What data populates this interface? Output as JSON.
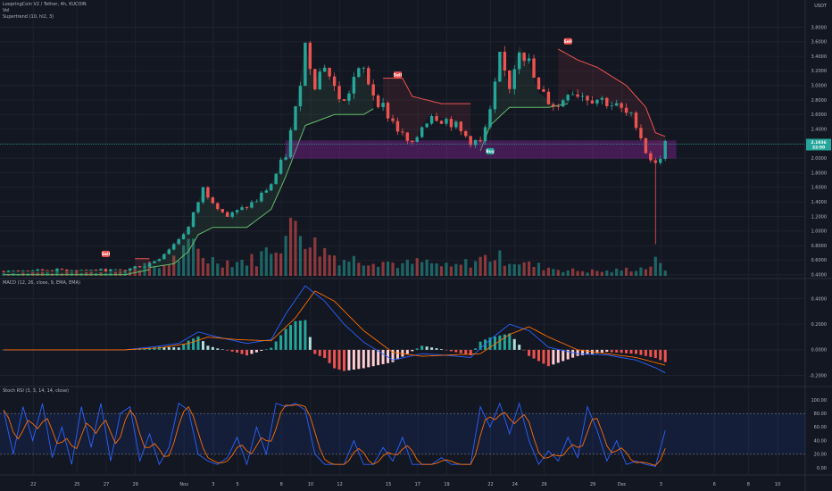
{
  "header": {
    "title": "LoopringCoin V2 / Tether, 4h, KUCOIN",
    "volume_label": "Vol",
    "supertrend_label": "Supertrend (10, hl2, 3)",
    "macd_label": "MACD (12, 26, close, 9, EMA, EMA)",
    "stoch_label": "Stoch RSI (3, 3, 14, 14, close)",
    "currency": "USDT"
  },
  "colors": {
    "background": "#131722",
    "up": "#26a69a",
    "down": "#ef5350",
    "supertrend_up": "#66bb6a",
    "supertrend_down": "#ef5350",
    "zone": "#9c27b0",
    "macd": "#2962ff",
    "signal": "#ff6d00",
    "stoch_k": "#2962ff",
    "stoch_d": "#ff6d00",
    "stoch_band": "#2962ff",
    "price_tag": "#26a69a"
  },
  "price_tag": {
    "price": "2.1936",
    "countdown": "32:50"
  },
  "chart_data": [
    {
      "type": "candlestick",
      "name": "price",
      "y_ticks": [
        "3.8000",
        "3.6000",
        "3.4000",
        "3.2000",
        "3.0000",
        "2.8000",
        "2.6000",
        "2.4000",
        "2.2000",
        "2.0000",
        "1.8000",
        "1.6000",
        "1.4000",
        "1.2000",
        "1.0000",
        "0.8000",
        "0.6000",
        "0.4000"
      ],
      "ylim": [
        0.36,
        4.1
      ],
      "x_ticks": [
        "22",
        "25",
        "27",
        "29",
        "Nov",
        "3",
        "5",
        "8",
        "10",
        "12",
        "15",
        "17",
        "19",
        "22",
        "24",
        "26",
        "29",
        "Dec",
        "3",
        "6",
        "8",
        "10",
        "13"
      ],
      "zone": [
        2.0,
        2.24
      ],
      "signals": [
        {
          "label": "Sell",
          "value": 0.68
        },
        {
          "label": "Sell",
          "value": 3.14
        },
        {
          "label": "Buy",
          "value": 2.09
        },
        {
          "label": "Sell",
          "value": 3.6
        }
      ],
      "keypoints": [
        {
          "t": 0,
          "v": 0.45
        },
        {
          "t": 12,
          "v": 0.47
        },
        {
          "t": 25,
          "v": 0.46
        },
        {
          "t": 27,
          "v": 0.51
        },
        {
          "t": 29,
          "v": 0.52
        },
        {
          "t": 32,
          "v": 0.63
        },
        {
          "t": 35,
          "v": 0.82
        },
        {
          "t": 38,
          "v": 1.05
        },
        {
          "t": 41,
          "v": 1.58
        },
        {
          "t": 44,
          "v": 1.35
        },
        {
          "t": 46,
          "v": 1.2
        },
        {
          "t": 49,
          "v": 1.3
        },
        {
          "t": 52,
          "v": 1.42
        },
        {
          "t": 55,
          "v": 1.65
        },
        {
          "t": 58,
          "v": 2.05
        },
        {
          "t": 60,
          "v": 2.65
        },
        {
          "t": 62,
          "v": 3.55
        },
        {
          "t": 64,
          "v": 3.05
        },
        {
          "t": 66,
          "v": 3.3
        },
        {
          "t": 68,
          "v": 2.95
        },
        {
          "t": 70,
          "v": 2.75
        },
        {
          "t": 72,
          "v": 3.1
        },
        {
          "t": 74,
          "v": 3.2
        },
        {
          "t": 76,
          "v": 2.9
        },
        {
          "t": 78,
          "v": 2.7
        },
        {
          "t": 80,
          "v": 2.5
        },
        {
          "t": 82,
          "v": 2.3
        },
        {
          "t": 84,
          "v": 2.15
        },
        {
          "t": 86,
          "v": 2.45
        },
        {
          "t": 88,
          "v": 2.62
        },
        {
          "t": 90,
          "v": 2.55
        },
        {
          "t": 92,
          "v": 2.5
        },
        {
          "t": 94,
          "v": 2.35
        },
        {
          "t": 96,
          "v": 2.25
        },
        {
          "t": 98,
          "v": 2.2
        },
        {
          "t": 100,
          "v": 2.6
        },
        {
          "t": 102,
          "v": 3.35
        },
        {
          "t": 104,
          "v": 3.0
        },
        {
          "t": 106,
          "v": 3.55
        },
        {
          "t": 108,
          "v": 3.3
        },
        {
          "t": 110,
          "v": 2.9
        },
        {
          "t": 112,
          "v": 2.8
        },
        {
          "t": 114,
          "v": 2.7
        },
        {
          "t": 116,
          "v": 2.95
        },
        {
          "t": 118,
          "v": 2.9
        },
        {
          "t": 120,
          "v": 2.85
        },
        {
          "t": 122,
          "v": 2.82
        },
        {
          "t": 124,
          "v": 2.78
        },
        {
          "t": 126,
          "v": 2.7
        },
        {
          "t": 128,
          "v": 2.6
        },
        {
          "t": 130,
          "v": 2.5
        },
        {
          "t": 132,
          "v": 2.1
        },
        {
          "t": 134,
          "v": 1.9
        },
        {
          "t": 136,
          "v": 2.19
        }
      ],
      "supertrend_segments": [
        {
          "dir": "up",
          "pts": [
            [
              0,
              0.4
            ],
            [
              25,
              0.4
            ],
            [
              30,
              0.47
            ]
          ]
        },
        {
          "dir": "down",
          "pts": [
            [
              27,
              0.62
            ],
            [
              30,
              0.62
            ]
          ]
        },
        {
          "dir": "up",
          "pts": [
            [
              30,
              0.5
            ],
            [
              35,
              0.55
            ],
            [
              38,
              0.72
            ],
            [
              40,
              0.95
            ],
            [
              43,
              1.05
            ],
            [
              50,
              1.05
            ],
            [
              55,
              1.3
            ],
            [
              58,
              1.75
            ],
            [
              62,
              2.45
            ],
            [
              68,
              2.6
            ],
            [
              74,
              2.6
            ],
            [
              76,
              2.68
            ]
          ]
        },
        {
          "dir": "down",
          "pts": [
            [
              78,
              3.1
            ],
            [
              82,
              3.1
            ],
            [
              84,
              2.85
            ],
            [
              90,
              2.75
            ],
            [
              96,
              2.75
            ]
          ]
        },
        {
          "dir": "up",
          "pts": [
            [
              98,
              2.1
            ],
            [
              100,
              2.45
            ],
            [
              104,
              2.7
            ],
            [
              112,
              2.7
            ],
            [
              116,
              2.75
            ]
          ]
        },
        {
          "dir": "down",
          "pts": [
            [
              114,
              3.5
            ],
            [
              118,
              3.35
            ],
            [
              122,
              3.25
            ],
            [
              128,
              3.0
            ],
            [
              132,
              2.7
            ],
            [
              134,
              2.35
            ],
            [
              136,
              2.3
            ]
          ]
        }
      ]
    },
    {
      "type": "bar",
      "name": "volume",
      "keypoints": [
        {
          "t": 0,
          "v": 0.05
        },
        {
          "t": 25,
          "v": 0.08
        },
        {
          "t": 29,
          "v": 0.2
        },
        {
          "t": 32,
          "v": 0.15
        },
        {
          "t": 36,
          "v": 0.35
        },
        {
          "t": 39,
          "v": 0.55
        },
        {
          "t": 42,
          "v": 0.3
        },
        {
          "t": 47,
          "v": 0.25
        },
        {
          "t": 52,
          "v": 0.3
        },
        {
          "t": 56,
          "v": 0.6
        },
        {
          "t": 58,
          "v": 0.7
        },
        {
          "t": 60,
          "v": 1.0
        },
        {
          "t": 62,
          "v": 0.8
        },
        {
          "t": 64,
          "v": 0.55
        },
        {
          "t": 66,
          "v": 0.45
        },
        {
          "t": 70,
          "v": 0.3
        },
        {
          "t": 76,
          "v": 0.3
        },
        {
          "t": 82,
          "v": 0.2
        },
        {
          "t": 86,
          "v": 0.25
        },
        {
          "t": 92,
          "v": 0.15
        },
        {
          "t": 100,
          "v": 0.35
        },
        {
          "t": 104,
          "v": 0.3
        },
        {
          "t": 108,
          "v": 0.2
        },
        {
          "t": 116,
          "v": 0.1
        },
        {
          "t": 124,
          "v": 0.08
        },
        {
          "t": 132,
          "v": 0.15
        },
        {
          "t": 134,
          "v": 0.25
        },
        {
          "t": 136,
          "v": 0.12
        }
      ]
    },
    {
      "type": "line",
      "name": "macd",
      "y_ticks": [
        "0.4000",
        "0.2000",
        "0.0000",
        "-0.2000"
      ],
      "ylim": [
        -0.28,
        0.55
      ],
      "series": [
        {
          "name": "MACD",
          "keypoints": [
            {
              "t": 0,
              "v": 0
            },
            {
              "t": 25,
              "v": 0.0
            },
            {
              "t": 30,
              "v": 0.02
            },
            {
              "t": 36,
              "v": 0.05
            },
            {
              "t": 40,
              "v": 0.14
            },
            {
              "t": 44,
              "v": 0.1
            },
            {
              "t": 50,
              "v": 0.05
            },
            {
              "t": 55,
              "v": 0.08
            },
            {
              "t": 58,
              "v": 0.28
            },
            {
              "t": 62,
              "v": 0.5
            },
            {
              "t": 66,
              "v": 0.38
            },
            {
              "t": 70,
              "v": 0.2
            },
            {
              "t": 74,
              "v": 0.06
            },
            {
              "t": 80,
              "v": -0.08
            },
            {
              "t": 86,
              "v": -0.03
            },
            {
              "t": 90,
              "v": -0.04
            },
            {
              "t": 96,
              "v": -0.06
            },
            {
              "t": 100,
              "v": 0.08
            },
            {
              "t": 104,
              "v": 0.2
            },
            {
              "t": 108,
              "v": 0.15
            },
            {
              "t": 112,
              "v": 0.02
            },
            {
              "t": 118,
              "v": -0.03
            },
            {
              "t": 124,
              "v": -0.04
            },
            {
              "t": 130,
              "v": -0.08
            },
            {
              "t": 134,
              "v": -0.14
            },
            {
              "t": 136,
              "v": -0.18
            }
          ]
        },
        {
          "name": "Signal",
          "keypoints": [
            {
              "t": 0,
              "v": 0
            },
            {
              "t": 25,
              "v": 0.0
            },
            {
              "t": 32,
              "v": 0.015
            },
            {
              "t": 38,
              "v": 0.05
            },
            {
              "t": 42,
              "v": 0.1
            },
            {
              "t": 48,
              "v": 0.08
            },
            {
              "t": 55,
              "v": 0.07
            },
            {
              "t": 60,
              "v": 0.25
            },
            {
              "t": 64,
              "v": 0.46
            },
            {
              "t": 68,
              "v": 0.38
            },
            {
              "t": 74,
              "v": 0.15
            },
            {
              "t": 80,
              "v": -0.02
            },
            {
              "t": 86,
              "v": -0.05
            },
            {
              "t": 92,
              "v": -0.04
            },
            {
              "t": 98,
              "v": -0.03
            },
            {
              "t": 104,
              "v": 0.12
            },
            {
              "t": 108,
              "v": 0.18
            },
            {
              "t": 112,
              "v": 0.1
            },
            {
              "t": 118,
              "v": 0.0
            },
            {
              "t": 124,
              "v": -0.03
            },
            {
              "t": 130,
              "v": -0.06
            },
            {
              "t": 134,
              "v": -0.1
            },
            {
              "t": 136,
              "v": -0.12
            }
          ]
        }
      ]
    },
    {
      "type": "line",
      "name": "stoch_rsi",
      "y_ticks": [
        "100.00",
        "80.00",
        "60.00",
        "40.00",
        "20.00",
        "0.00"
      ],
      "ylim": [
        0,
        100
      ],
      "band": [
        20,
        80
      ],
      "series": [
        {
          "name": "K",
          "keypoints": [
            {
              "t": 0,
              "v": 85
            },
            {
              "t": 2,
              "v": 20
            },
            {
              "t": 4,
              "v": 90
            },
            {
              "t": 6,
              "v": 40
            },
            {
              "t": 8,
              "v": 95
            },
            {
              "t": 10,
              "v": 15
            },
            {
              "t": 12,
              "v": 60
            },
            {
              "t": 14,
              "v": 5
            },
            {
              "t": 16,
              "v": 90
            },
            {
              "t": 18,
              "v": 30
            },
            {
              "t": 20,
              "v": 95
            },
            {
              "t": 22,
              "v": 10
            },
            {
              "t": 24,
              "v": 80
            },
            {
              "t": 26,
              "v": 90
            },
            {
              "t": 28,
              "v": 10
            },
            {
              "t": 30,
              "v": 50
            },
            {
              "t": 32,
              "v": 5
            },
            {
              "t": 34,
              "v": 30
            },
            {
              "t": 36,
              "v": 95
            },
            {
              "t": 38,
              "v": 85
            },
            {
              "t": 40,
              "v": 20
            },
            {
              "t": 42,
              "v": 10
            },
            {
              "t": 44,
              "v": 5
            },
            {
              "t": 46,
              "v": 15
            },
            {
              "t": 48,
              "v": 45
            },
            {
              "t": 50,
              "v": 5
            },
            {
              "t": 52,
              "v": 60
            },
            {
              "t": 54,
              "v": 20
            },
            {
              "t": 56,
              "v": 95
            },
            {
              "t": 58,
              "v": 90
            },
            {
              "t": 60,
              "v": 95
            },
            {
              "t": 62,
              "v": 85
            },
            {
              "t": 64,
              "v": 20
            },
            {
              "t": 66,
              "v": 5
            },
            {
              "t": 70,
              "v": 5
            },
            {
              "t": 72,
              "v": 40
            },
            {
              "t": 74,
              "v": 5
            },
            {
              "t": 76,
              "v": 5
            },
            {
              "t": 78,
              "v": 30
            },
            {
              "t": 80,
              "v": 10
            },
            {
              "t": 82,
              "v": 45
            },
            {
              "t": 84,
              "v": 5
            },
            {
              "t": 88,
              "v": 5
            },
            {
              "t": 90,
              "v": 15
            },
            {
              "t": 92,
              "v": 5
            },
            {
              "t": 96,
              "v": 5
            },
            {
              "t": 98,
              "v": 90
            },
            {
              "t": 100,
              "v": 60
            },
            {
              "t": 102,
              "v": 95
            },
            {
              "t": 104,
              "v": 50
            },
            {
              "t": 106,
              "v": 95
            },
            {
              "t": 108,
              "v": 40
            },
            {
              "t": 110,
              "v": 5
            },
            {
              "t": 112,
              "v": 25
            },
            {
              "t": 114,
              "v": 10
            },
            {
              "t": 116,
              "v": 45
            },
            {
              "t": 118,
              "v": 15
            },
            {
              "t": 120,
              "v": 90
            },
            {
              "t": 122,
              "v": 55
            },
            {
              "t": 124,
              "v": 10
            },
            {
              "t": 126,
              "v": 40
            },
            {
              "t": 128,
              "v": 5
            },
            {
              "t": 130,
              "v": 10
            },
            {
              "t": 132,
              "v": 5
            },
            {
              "t": 134,
              "v": 2
            },
            {
              "t": 136,
              "v": 55
            }
          ]
        }
      ]
    }
  ]
}
